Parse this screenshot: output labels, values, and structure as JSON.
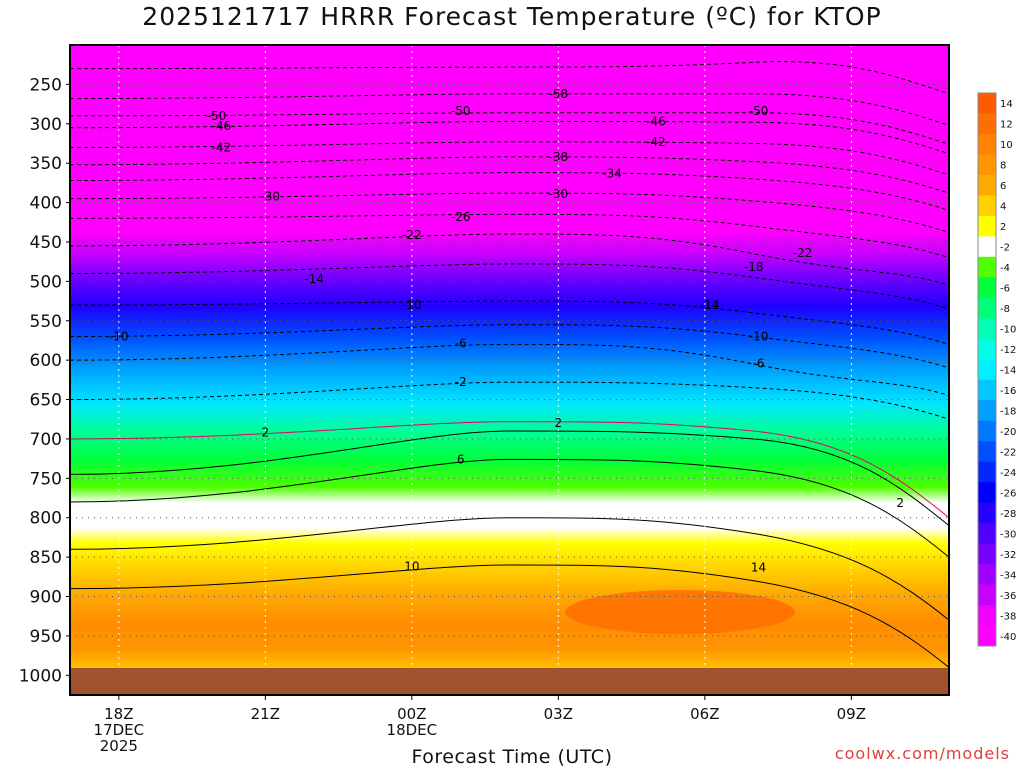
{
  "chart_data": {
    "type": "heatmap",
    "title": "2025121717 HRRR Forecast Temperature (ºC) for KTOP",
    "xlabel": "Forecast Time (UTC)",
    "ylabel": "",
    "credit": "coolwx.com/models",
    "y_ticks": [
      "250",
      "300",
      "350",
      "400",
      "450",
      "500",
      "550",
      "600",
      "650",
      "700",
      "750",
      "800",
      "850",
      "900",
      "950",
      "1000"
    ],
    "y_tick_values": [
      250,
      300,
      350,
      400,
      450,
      500,
      550,
      600,
      650,
      700,
      750,
      800,
      850,
      900,
      950,
      1000
    ],
    "y_range_hpa": [
      200,
      1025
    ],
    "x_ticks": [
      {
        "label": "18Z",
        "sub1": "17DEC",
        "sub2": "2025",
        "hour": 0
      },
      {
        "label": "21Z",
        "sub1": "",
        "sub2": "",
        "hour": 3
      },
      {
        "label": "00Z",
        "sub1": "18DEC",
        "sub2": "",
        "hour": 6
      },
      {
        "label": "03Z",
        "sub1": "",
        "sub2": "",
        "hour": 9
      },
      {
        "label": "06Z",
        "sub1": "",
        "sub2": "",
        "hour": 12
      },
      {
        "label": "09Z",
        "sub1": "",
        "sub2": "",
        "hour": 15
      }
    ],
    "x_range_hours": [
      -1,
      17
    ],
    "surface_pressure_hpa": 975,
    "colorbar": {
      "labels": [
        "14",
        "12",
        "10",
        "8",
        "6",
        "4",
        "2",
        "-2",
        "-4",
        "-6",
        "-8",
        "-10",
        "-12",
        "-14",
        "-16",
        "-18",
        "-20",
        "-22",
        "-24",
        "-26",
        "-28",
        "-30",
        "-32",
        "-34",
        "-36",
        "-38",
        "-40"
      ],
      "colors": [
        "#ff5a00",
        "#ff6e00",
        "#ff8200",
        "#ff9600",
        "#ffaa00",
        "#ffd200",
        "#ffff00",
        "#ffffff",
        "#50ff00",
        "#00ff3c",
        "#00ff78",
        "#00ffb4",
        "#00ffe6",
        "#00f0ff",
        "#00c8ff",
        "#00a0ff",
        "#0078ff",
        "#0050ff",
        "#0028ff",
        "#0000ff",
        "#2800ff",
        "#5000ff",
        "#7800ff",
        "#a000ff",
        "#c800ff",
        "#f000ff",
        "#ff00ff"
      ]
    },
    "temperature_profile_start": [
      {
        "p": 200,
        "t": -60
      },
      {
        "p": 250,
        "t": -57
      },
      {
        "p": 300,
        "t": -46
      },
      {
        "p": 350,
        "t": -38
      },
      {
        "p": 400,
        "t": -31
      },
      {
        "p": 450,
        "t": -24
      },
      {
        "p": 500,
        "t": -17
      },
      {
        "p": 550,
        "t": -12
      },
      {
        "p": 600,
        "t": -8
      },
      {
        "p": 650,
        "t": -3
      },
      {
        "p": 700,
        "t": 2
      },
      {
        "p": 750,
        "t": 5
      },
      {
        "p": 800,
        "t": 8
      },
      {
        "p": 850,
        "t": 10
      },
      {
        "p": 900,
        "t": 11
      },
      {
        "p": 950,
        "t": 8
      },
      {
        "p": 975,
        "t": 7
      }
    ],
    "contour_labels": [
      {
        "text": "-58",
        "hour": 9.0,
        "p": 262
      },
      {
        "text": "-50",
        "hour": 2.0,
        "p": 290
      },
      {
        "text": "-50",
        "hour": 7.0,
        "p": 284
      },
      {
        "text": "-50",
        "hour": 13.1,
        "p": 284
      },
      {
        "text": "-46",
        "hour": 2.1,
        "p": 303
      },
      {
        "text": "-46",
        "hour": 11.0,
        "p": 297
      },
      {
        "text": "-42",
        "hour": 2.1,
        "p": 330
      },
      {
        "text": "-42",
        "hour": 11.0,
        "p": 323
      },
      {
        "text": "-38",
        "hour": 9.0,
        "p": 342
      },
      {
        "text": "-34",
        "hour": 10.1,
        "p": 363
      },
      {
        "text": "-30",
        "hour": 3.1,
        "p": 392
      },
      {
        "text": "-30",
        "hour": 9.0,
        "p": 389
      },
      {
        "text": "-26",
        "hour": 7.0,
        "p": 418
      },
      {
        "text": "-22",
        "hour": 6.0,
        "p": 441
      },
      {
        "text": "-22",
        "hour": 14.0,
        "p": 464
      },
      {
        "text": "-18",
        "hour": 13.0,
        "p": 482
      },
      {
        "text": "-14",
        "hour": 4.0,
        "p": 497
      },
      {
        "text": "-14",
        "hour": 12.1,
        "p": 530
      },
      {
        "text": "-10",
        "hour": 0.0,
        "p": 570
      },
      {
        "text": "-10",
        "hour": 6.0,
        "p": 530
      },
      {
        "text": "-10",
        "hour": 13.1,
        "p": 570
      },
      {
        "text": "-6",
        "hour": 7.0,
        "p": 579
      },
      {
        "text": "-6",
        "hour": 13.1,
        "p": 604
      },
      {
        "text": "-2",
        "hour": 7.0,
        "p": 628
      },
      {
        "text": "2",
        "hour": 3.0,
        "p": 692
      },
      {
        "text": "2",
        "hour": 9.0,
        "p": 680
      },
      {
        "text": "2",
        "hour": 16.0,
        "p": 781
      },
      {
        "text": "6",
        "hour": 7.0,
        "p": 726
      },
      {
        "text": "10",
        "hour": 6.0,
        "p": 862
      },
      {
        "text": "14",
        "hour": 13.1,
        "p": 863
      }
    ]
  }
}
